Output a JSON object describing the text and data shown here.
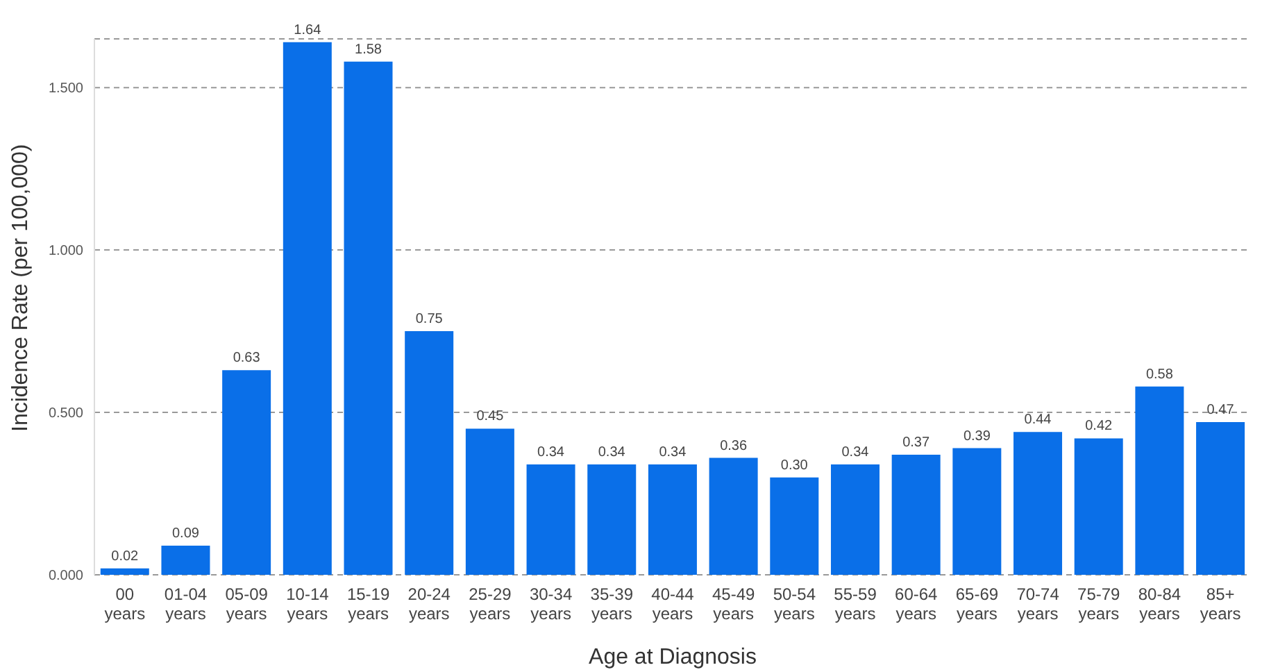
{
  "chart_data": {
    "type": "bar",
    "xlabel": "Age at Diagnosis",
    "ylabel": "Incidence Rate (per 100,000)",
    "categories": [
      "00 years",
      "01-04 years",
      "05-09 years",
      "10-14 years",
      "15-19 years",
      "20-24 years",
      "25-29 years",
      "30-34 years",
      "35-39 years",
      "40-44 years",
      "45-49 years",
      "50-54 years",
      "55-59 years",
      "60-64 years",
      "65-69 years",
      "70-74 years",
      "75-79 years",
      "80-84 years",
      "85+ years"
    ],
    "values": [
      0.02,
      0.09,
      0.63,
      1.64,
      1.58,
      0.75,
      0.45,
      0.34,
      0.34,
      0.34,
      0.36,
      0.3,
      0.34,
      0.37,
      0.39,
      0.44,
      0.42,
      0.58,
      0.47
    ],
    "value_labels": [
      "0.02",
      "0.09",
      "0.63",
      "1.64",
      "1.58",
      "0.75",
      "0.45",
      "0.34",
      "0.34",
      "0.34",
      "0.36",
      "0.30",
      "0.34",
      "0.37",
      "0.39",
      "0.44",
      "0.42",
      "0.58",
      "0.47"
    ],
    "color": "#0a6fe8",
    "ylim": [
      0,
      1.65
    ],
    "yticks": [
      {
        "value": 0,
        "label": "0.000"
      },
      {
        "value": 0.5,
        "label": "0.500"
      },
      {
        "value": 1,
        "label": "1.000"
      },
      {
        "value": 1.5,
        "label": "1.500"
      }
    ],
    "grid": "y",
    "legend": false
  }
}
